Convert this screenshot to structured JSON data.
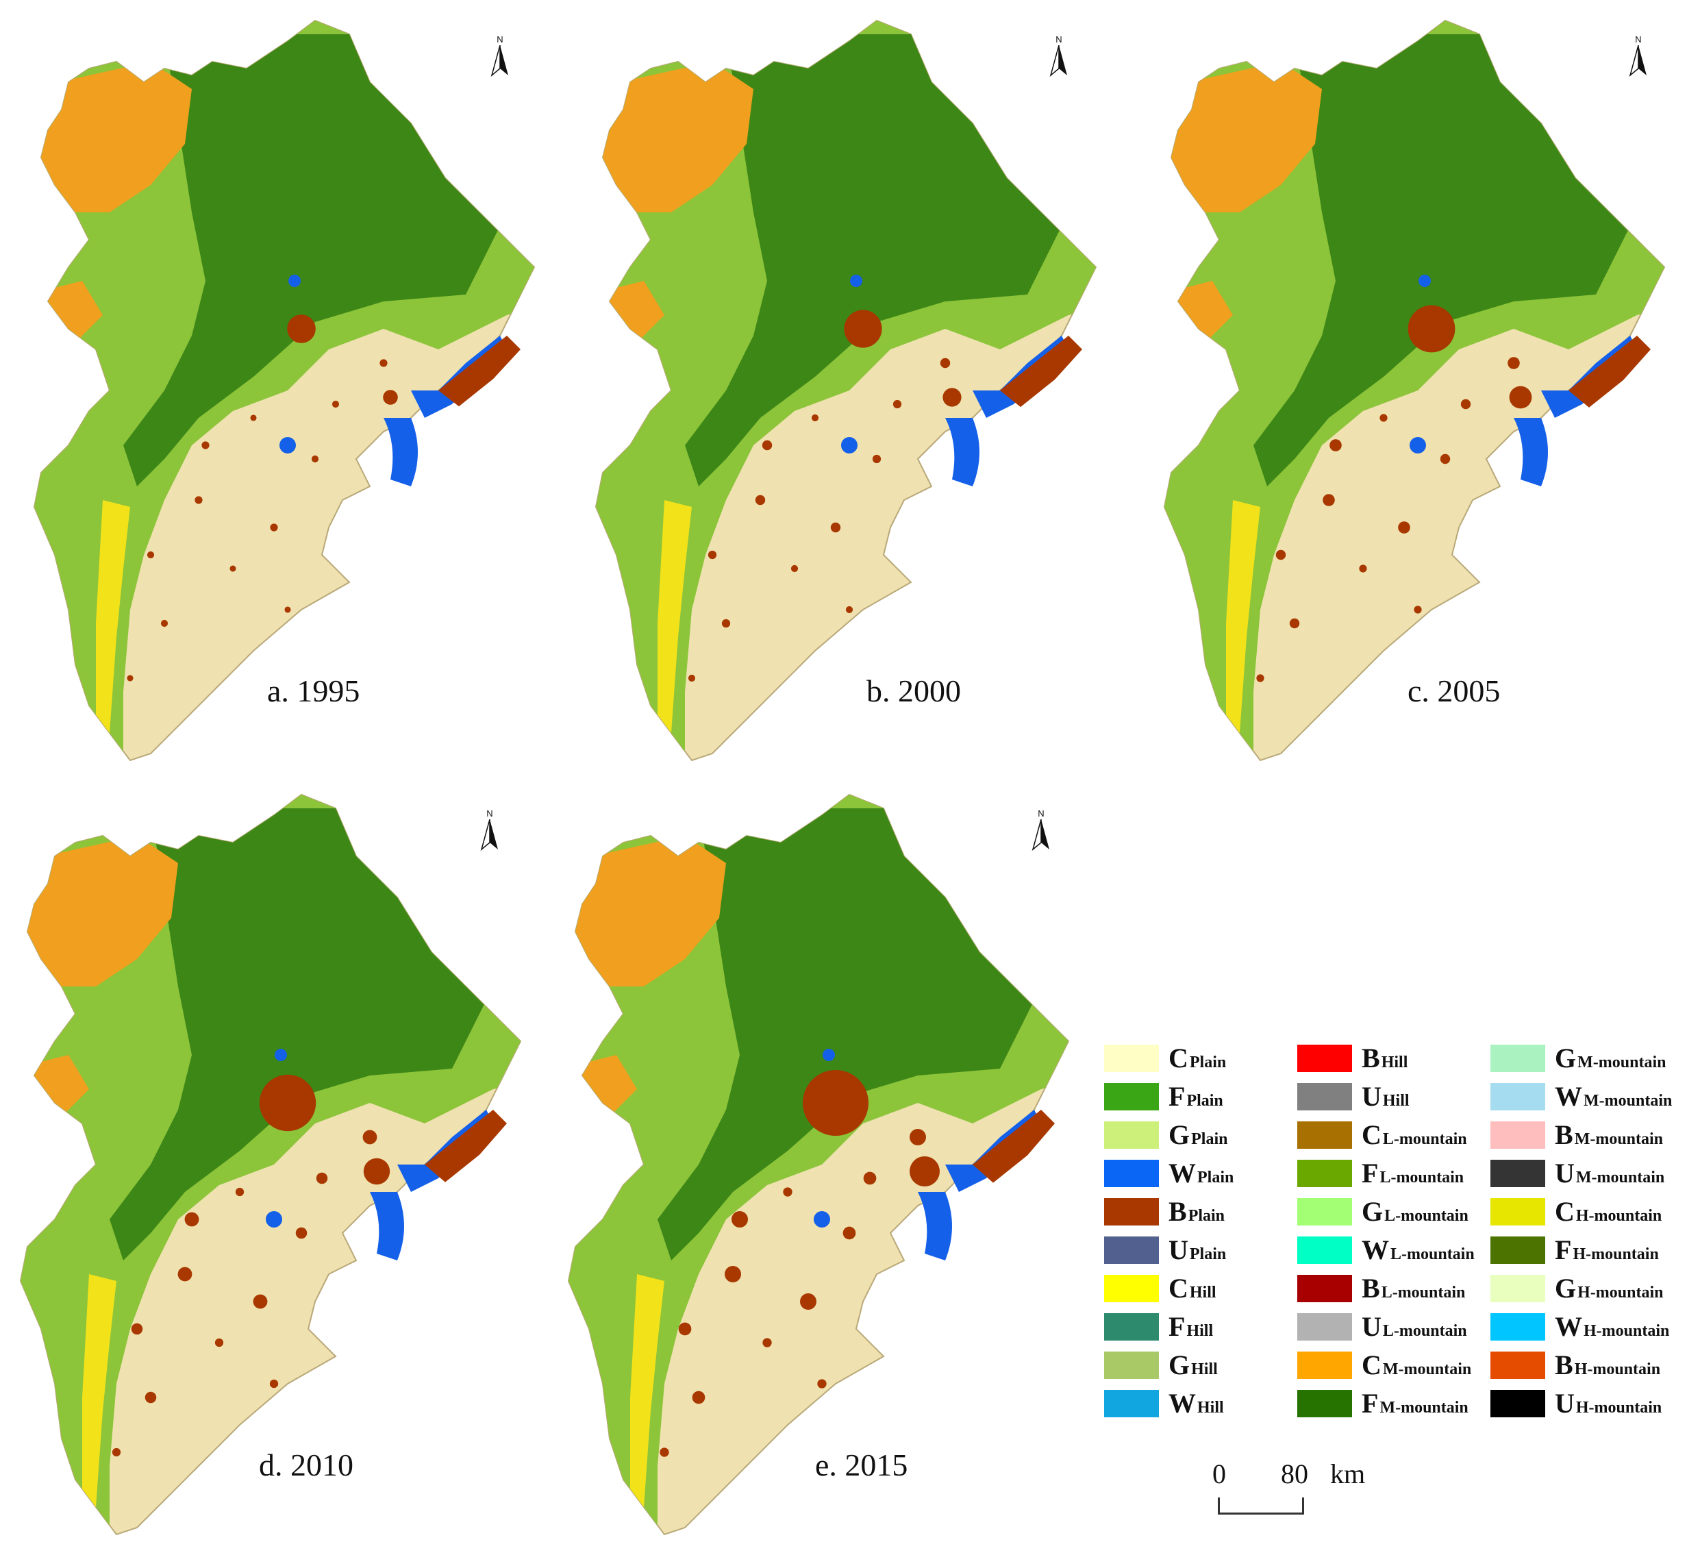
{
  "maps": [
    {
      "caption": "a. 1995"
    },
    {
      "caption": "b. 2000"
    },
    {
      "caption": "c. 2005"
    },
    {
      "caption": "d. 2010"
    },
    {
      "caption": "e. 2015"
    }
  ],
  "north_letter": "N",
  "legend": {
    "items": [
      {
        "main": "C",
        "sub": "Plain",
        "color": "#fffec5"
      },
      {
        "main": "F",
        "sub": "Plain",
        "color": "#3aa616"
      },
      {
        "main": "G",
        "sub": "Plain",
        "color": "#cdf07a"
      },
      {
        "main": "W",
        "sub": "Plain",
        "color": "#0a66f5"
      },
      {
        "main": "B",
        "sub": "Plain",
        "color": "#a83800"
      },
      {
        "main": "U",
        "sub": "Plain",
        "color": "#52608f"
      },
      {
        "main": "C",
        "sub": "Hill",
        "color": "#ffff00"
      },
      {
        "main": "F",
        "sub": "Hill",
        "color": "#2e8a6c"
      },
      {
        "main": "G",
        "sub": "Hill",
        "color": "#a8c966"
      },
      {
        "main": "W",
        "sub": "Hill",
        "color": "#12a6e0"
      },
      {
        "main": "B",
        "sub": "Hill",
        "color": "#ff0000"
      },
      {
        "main": "U",
        "sub": "Hill",
        "color": "#808080"
      },
      {
        "main": "C",
        "sub": "L-mountain",
        "color": "#a87000"
      },
      {
        "main": "F",
        "sub": "L-mountain",
        "color": "#6aa800"
      },
      {
        "main": "G",
        "sub": "L-mountain",
        "color": "#a3ff73"
      },
      {
        "main": "W",
        "sub": "L-mountain",
        "color": "#00ffc5"
      },
      {
        "main": "B",
        "sub": "L-mountain",
        "color": "#a80000"
      },
      {
        "main": "U",
        "sub": "L-mountain",
        "color": "#b2b2b2"
      },
      {
        "main": "C",
        "sub": "M-mountain",
        "color": "#ffa600"
      },
      {
        "main": "F",
        "sub": "M-mountain",
        "color": "#267300"
      },
      {
        "main": "G",
        "sub": "M-mountain",
        "color": "#aaf2c0"
      },
      {
        "main": "W",
        "sub": "M-mountain",
        "color": "#a6dcf0"
      },
      {
        "main": "B",
        "sub": "M-mountain",
        "color": "#ffbebe"
      },
      {
        "main": "U",
        "sub": "M-mountain",
        "color": "#343434"
      },
      {
        "main": "C",
        "sub": "H-mountain",
        "color": "#e6e600"
      },
      {
        "main": "F",
        "sub": "H-mountain",
        "color": "#4c7300"
      },
      {
        "main": "G",
        "sub": "H-mountain",
        "color": "#e9ffbe"
      },
      {
        "main": "W",
        "sub": "H-mountain",
        "color": "#00c5ff"
      },
      {
        "main": "B",
        "sub": "H-mountain",
        "color": "#e64c00"
      },
      {
        "main": "U",
        "sub": "H-mountain",
        "color": "#000000"
      }
    ]
  },
  "scale_bar": {
    "start": "0",
    "end": "80",
    "unit": "km"
  },
  "palette": {
    "plain_base": "#efe2b0",
    "forest_dark": "#2f7d12",
    "forest_light": "#8cc43a",
    "mountain_orange": "#f0a01e",
    "built_up": "#a83800",
    "water": "#1460e8",
    "hill_yellow": "#f2e21a"
  }
}
